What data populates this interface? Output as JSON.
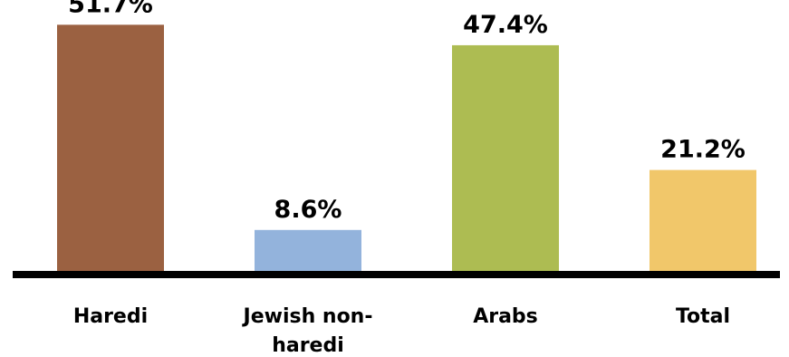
{
  "chart_data": {
    "type": "bar",
    "title": "",
    "xlabel": "",
    "ylabel": "",
    "ylim": [
      0,
      55
    ],
    "grid": false,
    "legend": "none",
    "categories": [
      [
        "Haredi"
      ],
      [
        "Jewish non-",
        "haredi"
      ],
      [
        "Arabs"
      ],
      [
        "Total"
      ]
    ],
    "values": [
      51.7,
      8.6,
      47.4,
      21.2
    ],
    "value_labels": [
      "51.7%",
      "8.6%",
      "47.4%",
      "21.2%"
    ],
    "colors": [
      "#9b6141",
      "#93b3dc",
      "#adbc52",
      "#f1c76a"
    ],
    "axis_color": "#000000"
  }
}
